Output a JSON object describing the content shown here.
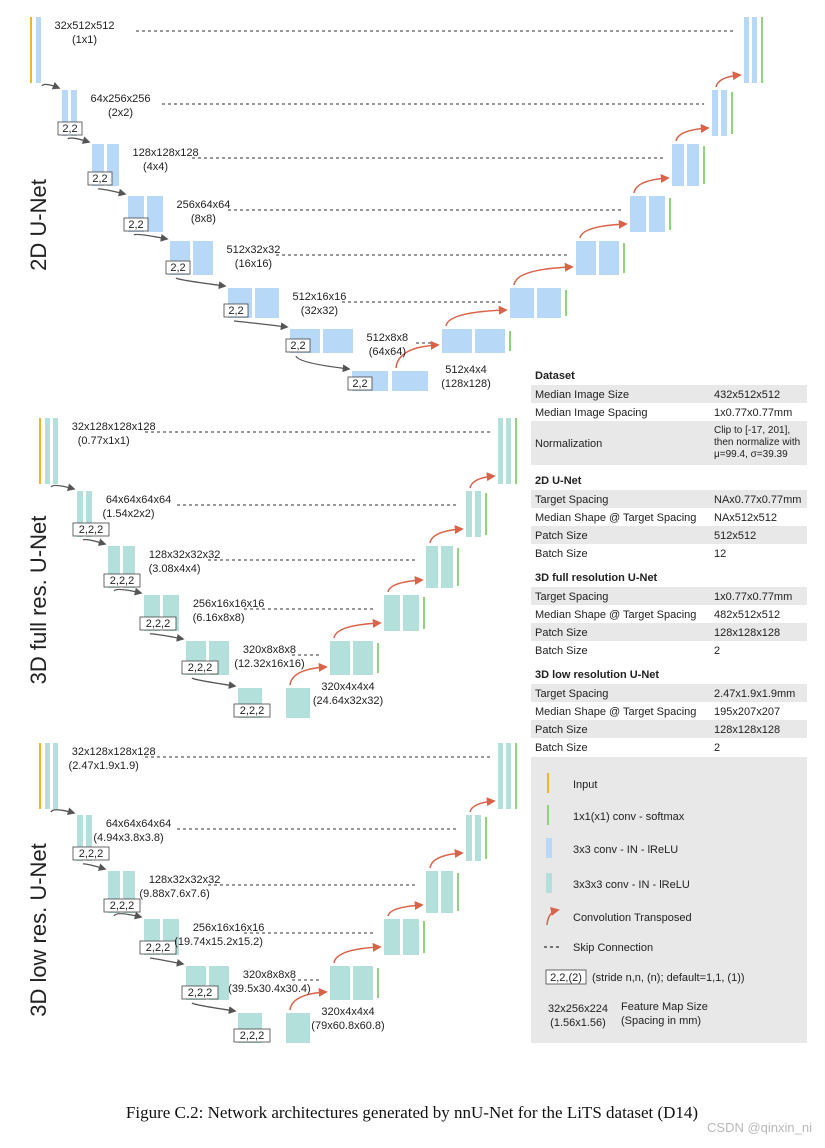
{
  "colors": {
    "input": "#F0B429",
    "softmax": "#8DD47A",
    "conv2d": "#B7D8F7",
    "conv3d": "#B3E0DA",
    "transpose": "#D9634A",
    "skip": "#333333",
    "panel": "#E8E8E8"
  },
  "networks": [
    {
      "title": "2D U-Net",
      "block_kind": "conv2d",
      "stages": [
        {
          "size": "32x512x512",
          "spacing": "(1x1)"
        },
        {
          "size": "64x256x256",
          "spacing": "(2x2)",
          "stride": "2,2"
        },
        {
          "size": "128x128x128",
          "spacing": "(4x4)",
          "stride": "2,2"
        },
        {
          "size": "256x64x64",
          "spacing": "(8x8)",
          "stride": "2,2"
        },
        {
          "size": "512x32x32",
          "spacing": "(16x16)",
          "stride": "2,2"
        },
        {
          "size": "512x16x16",
          "spacing": "(32x32)",
          "stride": "2,2"
        },
        {
          "size": "512x8x8",
          "spacing": "(64x64)",
          "stride": "2,2"
        },
        {
          "size": "512x4x4",
          "spacing": "(128x128)",
          "stride": "2,2"
        }
      ]
    },
    {
      "title": "3D full res. U-Net",
      "block_kind": "conv3d",
      "stages": [
        {
          "size": "32x128x128x128",
          "spacing": "(0.77x1x1)"
        },
        {
          "size": "64x64x64x64",
          "spacing": "(1.54x2x2)",
          "stride": "2,2,2"
        },
        {
          "size": "128x32x32x32",
          "spacing": "(3.08x4x4)",
          "stride": "2,2,2"
        },
        {
          "size": "256x16x16x16",
          "spacing": "(6.16x8x8)",
          "stride": "2,2,2"
        },
        {
          "size": "320x8x8x8",
          "spacing": "(12.32x16x16)",
          "stride": "2,2,2"
        },
        {
          "size": "320x4x4x4",
          "spacing": "(24.64x32x32)",
          "stride": "2,2,2"
        }
      ]
    },
    {
      "title": "3D low res. U-Net",
      "block_kind": "conv3d",
      "stages": [
        {
          "size": "32x128x128x128",
          "spacing": "(2.47x1.9x1.9)"
        },
        {
          "size": "64x64x64x64",
          "spacing": "(4.94x3.8x3.8)",
          "stride": "2,2,2"
        },
        {
          "size": "128x32x32x32",
          "spacing": "(9.88x7.6x7.6)",
          "stride": "2,2,2"
        },
        {
          "size": "256x16x16x16",
          "spacing": "(19.74x15.2x15.2)",
          "stride": "2,2,2"
        },
        {
          "size": "320x8x8x8",
          "spacing": "(39.5x30.4x30.4)",
          "stride": "2,2,2"
        },
        {
          "size": "320x4x4x4",
          "spacing": "(79x60.8x60.8)",
          "stride": "2,2,2"
        }
      ]
    }
  ],
  "table": {
    "sections": [
      {
        "heading": "Dataset",
        "rows": [
          {
            "label": "Median Image Size",
            "value": [
              "432x512x512"
            ]
          },
          {
            "label": "Median Image Spacing",
            "value": [
              "1x0.77x0.77mm"
            ]
          },
          {
            "label": "Normalization",
            "value": [
              "Clip to [-17, 201],",
              "then normalize with",
              "μ=99.4, σ=39.39"
            ]
          }
        ]
      },
      {
        "heading": "2D U-Net",
        "rows": [
          {
            "label": "Target Spacing",
            "value": [
              "NAx0.77x0.77mm"
            ]
          },
          {
            "label": "Median Shape @ Target Spacing",
            "value": [
              "NAx512x512"
            ]
          },
          {
            "label": "Patch Size",
            "value": [
              "512x512"
            ]
          },
          {
            "label": "Batch Size",
            "value": [
              "12"
            ]
          }
        ]
      },
      {
        "heading": "3D full resolution U-Net",
        "rows": [
          {
            "label": "Target Spacing",
            "value": [
              "1x0.77x0.77mm"
            ]
          },
          {
            "label": "Median Shape @ Target Spacing",
            "value": [
              "482x512x512"
            ]
          },
          {
            "label": "Patch Size",
            "value": [
              "128x128x128"
            ]
          },
          {
            "label": "Batch Size",
            "value": [
              "2"
            ]
          }
        ]
      },
      {
        "heading": "3D low resolution U-Net",
        "rows": [
          {
            "label": "Target Spacing",
            "value": [
              "2.47x1.9x1.9mm"
            ]
          },
          {
            "label": "Median Shape @ Target Spacing",
            "value": [
              "195x207x207"
            ]
          },
          {
            "label": "Patch Size",
            "value": [
              "128x128x128"
            ]
          },
          {
            "label": "Batch Size",
            "value": [
              "2"
            ]
          }
        ]
      }
    ]
  },
  "legend": {
    "input": "Input",
    "softmax": "1x1(x1) conv - softmax",
    "conv2d": "3x3 conv - IN - lReLU",
    "conv3d": "3x3x3 conv - IN - lReLU",
    "transpose": "Convolution Transposed",
    "skip": "Skip Connection",
    "stride_box": "2,2,(2)",
    "stride_text": "(stride n,n, (n); default=1,1, (1))",
    "fm_size": "32x256x224",
    "fm_spacing": "(1.56x1.56)",
    "fm_desc1": "Feature Map Size",
    "fm_desc2": "(Spacing in mm)"
  },
  "caption": "Figure C.2: Network architectures generated by nnU-Net for the LiTS dataset (D14)",
  "watermark": "CSDN @qinxin_ni"
}
